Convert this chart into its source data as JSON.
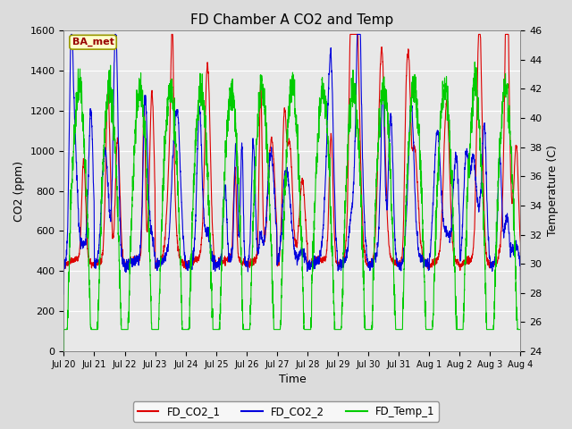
{
  "title": "FD Chamber A CO2 and Temp",
  "xlabel": "Time",
  "ylabel_left": "CO2 (ppm)",
  "ylabel_right": "Temperature (C)",
  "ylim_left": [
    0,
    1600
  ],
  "ylim_right": [
    24,
    46
  ],
  "bg_color": "#dcdcdc",
  "plot_bg_color": "#e8e8e8",
  "legend_label": "BA_met",
  "legend_colors": [
    "#dd0000",
    "#0000dd",
    "#00cc00"
  ],
  "legend_entries": [
    "FD_CO2_1",
    "FD_CO2_2",
    "FD_Temp_1"
  ],
  "line_width": 0.8,
  "yticks_left": [
    0,
    200,
    400,
    600,
    800,
    1000,
    1200,
    1400,
    1600
  ],
  "yticks_right": [
    24,
    26,
    28,
    30,
    32,
    34,
    36,
    38,
    40,
    42,
    44,
    46
  ],
  "tick_labels": [
    "Jul 20",
    "Jul 21",
    "Jul 22",
    "Jul 23",
    "Jul 24",
    "Jul 25",
    "Jul 26",
    "Jul 27",
    "Jul 28",
    "Jul 29",
    "Jul 30",
    "Jul 31",
    "Aug 1",
    "Aug 2",
    "Aug 3",
    "Aug 4"
  ],
  "num_days": 15,
  "pts_per_day": 288
}
